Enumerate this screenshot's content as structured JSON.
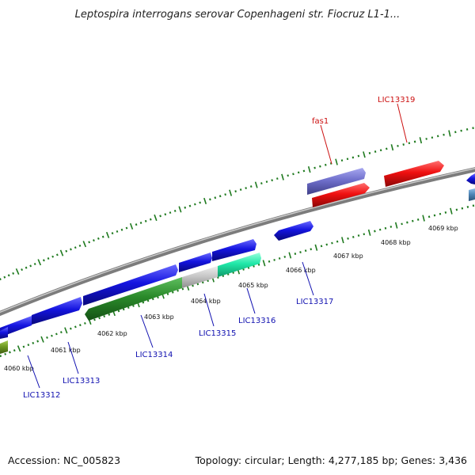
{
  "title": "Leptospira interrogans serovar Copenhageni str. Fiocruz L1-1...",
  "footer": {
    "accession": "Accession: NC_005823",
    "summary": "Topology: circular; Length: 4,277,185 bp; Genes: 3,436"
  },
  "colors": {
    "blue_gene": "#1414e0",
    "red_gene": "#f01010",
    "green_gene": "#2a8a2a",
    "olive_gene": "#6f9a22",
    "cyan_gene": "#20e8a8",
    "gray_gene": "#c8c8c8",
    "purple_gene": "#7070cc",
    "steel_gene": "#4f86b8",
    "axis": "#888888",
    "tick": "#1f7a1f",
    "label_blue": "#1010b0",
    "label_red": "#cc1010"
  },
  "scale": {
    "unit": "kbp",
    "ticks": [
      {
        "value": 4060,
        "label": "4060 kbp"
      },
      {
        "value": 4061,
        "label": "4061 kbp"
      },
      {
        "value": 4062,
        "label": "4062 kbp"
      },
      {
        "value": 4063,
        "label": "4063 kbp"
      },
      {
        "value": 4064,
        "label": "4064 kbp"
      },
      {
        "value": 4065,
        "label": "4065 kbp"
      },
      {
        "value": 4066,
        "label": "4066 kbp"
      },
      {
        "value": 4067,
        "label": "4067 kbp"
      },
      {
        "value": 4068,
        "label": "4068 kbp"
      },
      {
        "value": 4069,
        "label": "4069 kbp"
      }
    ]
  },
  "gene_labels": [
    {
      "id": "LIC13312",
      "text": "LIC13312",
      "color": "blue"
    },
    {
      "id": "LIC13313",
      "text": "LIC13313",
      "color": "blue"
    },
    {
      "id": "LIC13314",
      "text": "LIC13314",
      "color": "blue"
    },
    {
      "id": "LIC13315",
      "text": "LIC13315",
      "color": "blue"
    },
    {
      "id": "LIC13316",
      "text": "LIC13316",
      "color": "blue"
    },
    {
      "id": "LIC13317",
      "text": "LIC13317",
      "color": "blue"
    },
    {
      "id": "fas1",
      "text": "fas1",
      "color": "red"
    },
    {
      "id": "LIC13319",
      "text": "LIC13319",
      "color": "red"
    }
  ]
}
